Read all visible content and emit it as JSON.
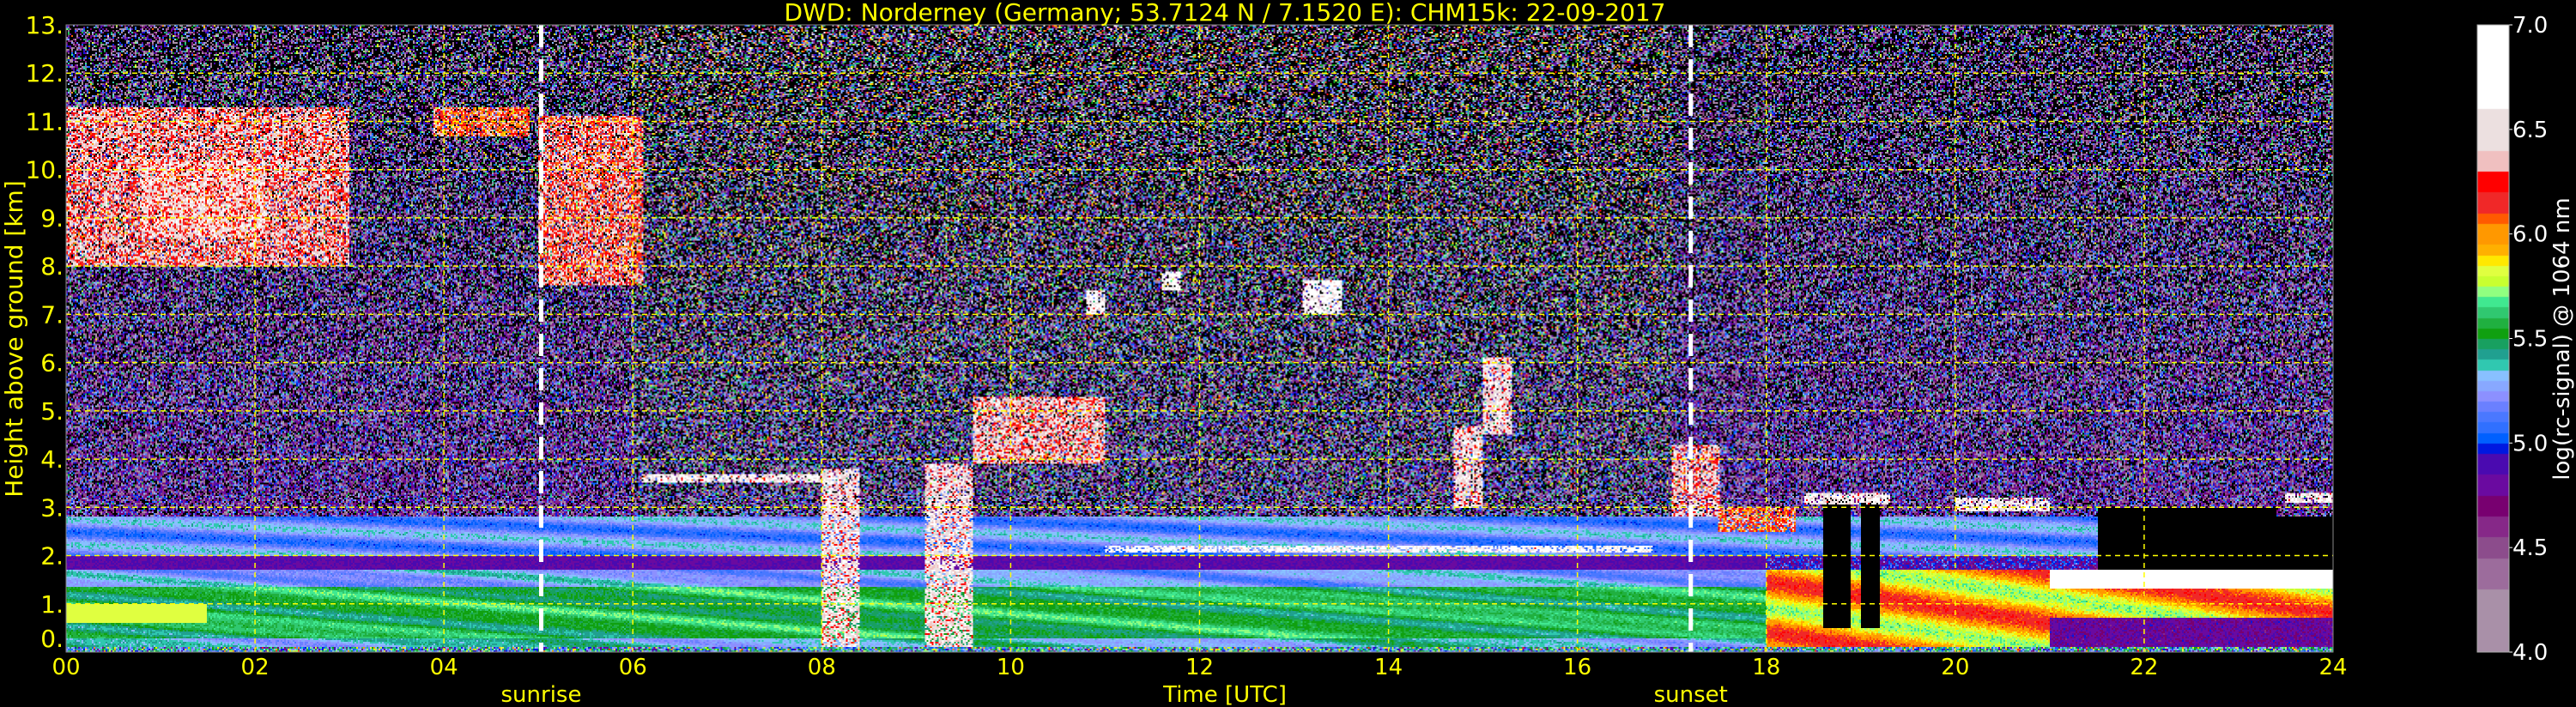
{
  "chart_data": {
    "type": "heatmap",
    "title": "DWD: Norderney (Germany; 53.7124 N / 7.1520 E):    CHM15k: 22-09-2017",
    "xlabel": "Time [UTC]",
    "ylabel": "Height above ground [km]",
    "xlim": [
      0,
      24
    ],
    "ylim": [
      0,
      13
    ],
    "xticks": [
      "00",
      "02",
      "04",
      "06",
      "08",
      "10",
      "12",
      "14",
      "16",
      "18",
      "20",
      "22",
      "24"
    ],
    "yticks": [
      "0.",
      "1.",
      "2.",
      "3.",
      "4.",
      "5.",
      "6.",
      "7.",
      "8.",
      "9.",
      "10.",
      "11.",
      "12.",
      "13."
    ],
    "grid": true,
    "annotations": [
      {
        "label": "sunrise",
        "time_utc": 5.03
      },
      {
        "label": "sunset",
        "time_utc": 17.2
      }
    ],
    "colorbar": {
      "label": "log(rc-signal) @ 1064 nm",
      "range": [
        4.0,
        7.0
      ],
      "ticks": [
        "4.0",
        "4.5",
        "5.0",
        "5.5",
        "6.0",
        "6.5",
        "7.0"
      ],
      "levels": [
        {
          "from": 4.0,
          "color": "#a990a8"
        },
        {
          "from": 4.3,
          "color": "#9c6c9c"
        },
        {
          "from": 4.45,
          "color": "#8c4c8c"
        },
        {
          "from": 4.55,
          "color": "#862888"
        },
        {
          "from": 4.65,
          "color": "#780070"
        },
        {
          "from": 4.75,
          "color": "#6a0aa0"
        },
        {
          "from": 4.85,
          "color": "#4a0ab0"
        },
        {
          "from": 4.95,
          "color": "#0018e0"
        },
        {
          "from": 5.0,
          "color": "#0060ff"
        },
        {
          "from": 5.05,
          "color": "#3070ff"
        },
        {
          "from": 5.1,
          "color": "#4a78ff"
        },
        {
          "from": 5.15,
          "color": "#6a80ff"
        },
        {
          "from": 5.2,
          "color": "#8c90ff"
        },
        {
          "from": 5.25,
          "color": "#88a8ff"
        },
        {
          "from": 5.3,
          "color": "#88c0ff"
        },
        {
          "from": 5.35,
          "color": "#30c8b0"
        },
        {
          "from": 5.4,
          "color": "#20a090"
        },
        {
          "from": 5.45,
          "color": "#18a060"
        },
        {
          "from": 5.5,
          "color": "#10a010"
        },
        {
          "from": 5.55,
          "color": "#20b040"
        },
        {
          "from": 5.6,
          "color": "#30c870"
        },
        {
          "from": 5.65,
          "color": "#40e890"
        },
        {
          "from": 5.7,
          "color": "#90ff80"
        },
        {
          "from": 5.75,
          "color": "#c8ff30"
        },
        {
          "from": 5.8,
          "color": "#e0ff40"
        },
        {
          "from": 5.85,
          "color": "#ffe800"
        },
        {
          "from": 5.9,
          "color": "#ffb000"
        },
        {
          "from": 5.95,
          "color": "#ff9800"
        },
        {
          "from": 6.05,
          "color": "#ff5a00"
        },
        {
          "from": 6.1,
          "color": "#f02828"
        },
        {
          "from": 6.2,
          "color": "#ff0000"
        },
        {
          "from": 6.3,
          "color": "#f0c0c0"
        },
        {
          "from": 6.4,
          "color": "#ece0e0"
        },
        {
          "from": 6.6,
          "color": "#ffffff"
        }
      ]
    },
    "colors": {
      "text": "#ffff00",
      "grid": "#ffff00",
      "marker_line": "#ffffff",
      "background": "#000000"
    }
  }
}
